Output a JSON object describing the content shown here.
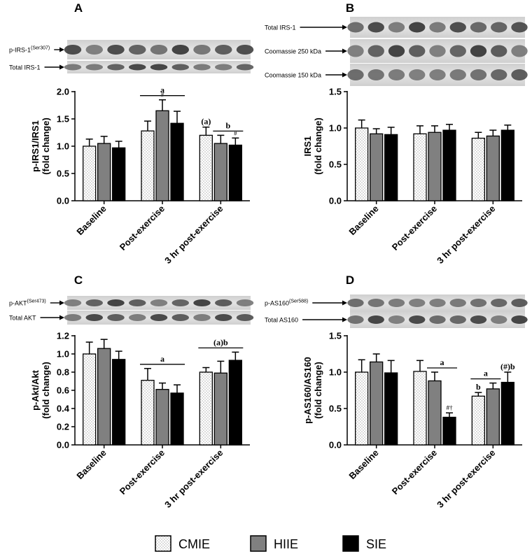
{
  "figure": {
    "legend": [
      {
        "name": "CMIE",
        "fill": "dotted"
      },
      {
        "name": "HIIE",
        "fill": "#808080"
      },
      {
        "name": "SIE",
        "fill": "#000000"
      }
    ],
    "colors": {
      "CMIE": "#ffffff",
      "HIIE": "#808080",
      "SIE": "#000000"
    }
  },
  "chart_data": [
    {
      "panel": "A",
      "type": "bar",
      "ylabel": [
        "p-IRS1/IRS1",
        "(fold change)"
      ],
      "ylim": [
        0,
        2.0
      ],
      "yticks": [
        "0.0",
        "0.5",
        "1.0",
        "1.5",
        "2.0"
      ],
      "categories": [
        "Baseline",
        "Post-exercise",
        "3 hr post-exercise"
      ],
      "series": [
        {
          "name": "CMIE",
          "values": [
            1.0,
            1.28,
            1.2
          ],
          "errors": [
            0.13,
            0.18,
            0.15
          ]
        },
        {
          "name": "HIIE",
          "values": [
            1.05,
            1.65,
            1.05
          ],
          "errors": [
            0.13,
            0.2,
            0.15
          ]
        },
        {
          "name": "SIE",
          "values": [
            0.97,
            1.42,
            1.02
          ],
          "errors": [
            0.12,
            0.22,
            0.13
          ]
        }
      ],
      "annotations": [
        {
          "text": "a",
          "kind": "group",
          "category": 1
        },
        {
          "text": "#",
          "kind": "bar",
          "category": 1,
          "series": 1
        },
        {
          "text": "(a)",
          "kind": "bar",
          "category": 2,
          "series": 0
        },
        {
          "text": "b",
          "kind": "span",
          "category": 2,
          "from": 1,
          "to": 2
        },
        {
          "text": "#",
          "kind": "bar",
          "category": 2,
          "series": 2
        }
      ],
      "blot": [
        "p-IRS-1(Ser307)",
        "Total IRS-1"
      ]
    },
    {
      "panel": "B",
      "type": "bar",
      "ylabel": [
        "IRS1",
        "(fold change)"
      ],
      "ylim": [
        0,
        1.5
      ],
      "yticks": [
        "0.0",
        "0.5",
        "1.0",
        "1.5"
      ],
      "categories": [
        "Baseline",
        "Post-exercise",
        "3 hr post-exercise"
      ],
      "series": [
        {
          "name": "CMIE",
          "values": [
            1.0,
            0.92,
            0.86
          ],
          "errors": [
            0.11,
            0.11,
            0.08
          ]
        },
        {
          "name": "HIIE",
          "values": [
            0.92,
            0.94,
            0.89
          ],
          "errors": [
            0.07,
            0.09,
            0.08
          ]
        },
        {
          "name": "SIE",
          "values": [
            0.91,
            0.97,
            0.97
          ],
          "errors": [
            0.1,
            0.08,
            0.07
          ]
        }
      ],
      "annotations": [],
      "blot": [
        "Total IRS-1",
        "Coomassie 250 kDa",
        "Coomassie 150 kDa"
      ]
    },
    {
      "panel": "C",
      "type": "bar",
      "ylabel": [
        "p-Akt/Akt",
        "(fold change)"
      ],
      "ylim": [
        0,
        1.2
      ],
      "yticks": [
        "0.0",
        "0.2",
        "0.4",
        "0.6",
        "0.8",
        "1.0",
        "1.2"
      ],
      "categories": [
        "Baseline",
        "Post-exercise",
        "3 hr post-exercise"
      ],
      "series": [
        {
          "name": "CMIE",
          "values": [
            1.0,
            0.71,
            0.8
          ],
          "errors": [
            0.13,
            0.13,
            0.05
          ]
        },
        {
          "name": "HIIE",
          "values": [
            1.06,
            0.61,
            0.79
          ],
          "errors": [
            0.1,
            0.07,
            0.13
          ]
        },
        {
          "name": "SIE",
          "values": [
            0.94,
            0.57,
            0.93
          ],
          "errors": [
            0.09,
            0.09,
            0.09
          ]
        }
      ],
      "annotations": [
        {
          "text": "a",
          "kind": "group",
          "category": 1
        },
        {
          "text": "(a)b",
          "kind": "group",
          "category": 2
        }
      ],
      "blot": [
        "p-AKT(Ser473)",
        "Total AKT"
      ]
    },
    {
      "panel": "D",
      "type": "bar",
      "ylabel": [
        "p-AS160/AS160",
        "(fold change)"
      ],
      "ylim": [
        0,
        1.5
      ],
      "yticks": [
        "0.0",
        "0.5",
        "1.0",
        "1.5"
      ],
      "categories": [
        "Baseline",
        "Post-exercise",
        "3 hr post-exercise"
      ],
      "series": [
        {
          "name": "CMIE",
          "values": [
            1.0,
            1.01,
            0.67
          ],
          "errors": [
            0.17,
            0.15,
            0.05
          ]
        },
        {
          "name": "HIIE",
          "values": [
            1.14,
            0.88,
            0.77
          ],
          "errors": [
            0.11,
            0.12,
            0.08
          ]
        },
        {
          "name": "SIE",
          "values": [
            0.99,
            0.38,
            0.86
          ],
          "errors": [
            0.17,
            0.06,
            0.14
          ]
        }
      ],
      "annotations": [
        {
          "text": "a",
          "kind": "span",
          "category": 1,
          "from": 1,
          "to": 2
        },
        {
          "text": "#†",
          "kind": "bar",
          "category": 1,
          "series": 2
        },
        {
          "text": "a",
          "kind": "span",
          "category": 2,
          "from": 0,
          "to": 1
        },
        {
          "text": "b",
          "kind": "bar",
          "category": 2,
          "series": 0
        },
        {
          "text": "(#)b",
          "kind": "bar",
          "category": 2,
          "series": 2
        }
      ],
      "blot": [
        "p-AS160(Ser588)",
        "Total AS160"
      ]
    }
  ]
}
